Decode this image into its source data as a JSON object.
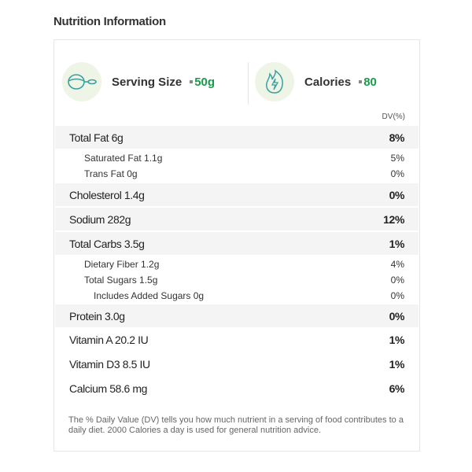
{
  "title": "Nutrition Information",
  "serving": {
    "label": "Serving Size",
    "value": "50g",
    "icon": "scoop-icon"
  },
  "calories": {
    "label": "Calories",
    "value": "80",
    "icon": "flame-bolt-icon"
  },
  "dv_header": "DV(%)",
  "rows": [
    {
      "label": "Total Fat 6g",
      "dv": "8%",
      "level": 0,
      "shaded": true
    },
    {
      "label": "Saturated Fat 1.1g",
      "dv": "5%",
      "level": 1
    },
    {
      "label": "Trans Fat 0g",
      "dv": "0%",
      "level": 1
    },
    {
      "label": "Cholesterol 1.4g",
      "dv": "0%",
      "level": 0,
      "shaded": true
    },
    {
      "label": "Sodium 282g",
      "dv": "12%",
      "level": 0,
      "shaded": true
    },
    {
      "label": "Total Carbs 3.5g",
      "dv": "1%",
      "level": 0,
      "shaded": true
    },
    {
      "label": "Dietary Fiber 1.2g",
      "dv": "4%",
      "level": 1
    },
    {
      "label": "Total Sugars 1.5g",
      "dv": "0%",
      "level": 1
    },
    {
      "label": "Includes Added Sugars 0g",
      "dv": "0%",
      "level": 2
    },
    {
      "label": "Protein 3.0g",
      "dv": "0%",
      "level": 0,
      "shaded": true
    },
    {
      "label": "Vitamin A 20.2 IU",
      "dv": "1%",
      "level": 0
    },
    {
      "label": "Vitamin D3 8.5 IU",
      "dv": "1%",
      "level": 0
    },
    {
      "label": "Calcium 58.6 mg",
      "dv": "6%",
      "level": 0
    }
  ],
  "footnote": "The % Daily Value (DV) tells you how much nutrient in a serving of food contributes to a daily diet. 2000 Calories a day is used for general nutrition advice.",
  "colors": {
    "accent": "#1a9a4a",
    "row_shade": "#f4f4f4",
    "icon_bg": "#eef5e6"
  }
}
